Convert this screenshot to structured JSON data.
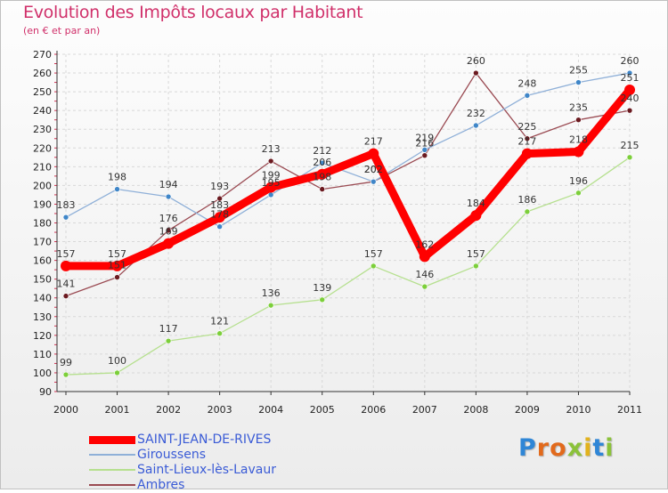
{
  "chart_data": {
    "type": "line",
    "title": "Evolution des Impôts locaux par Habitant",
    "subtitle": "(en € et par an)",
    "x": [
      "2000",
      "2001",
      "2002",
      "2003",
      "2004",
      "2005",
      "2006",
      "2007",
      "2008",
      "2009",
      "2010",
      "2011"
    ],
    "ylim": [
      90,
      270
    ],
    "yticks": [
      90,
      100,
      110,
      120,
      130,
      140,
      150,
      160,
      170,
      180,
      190,
      200,
      210,
      220,
      230,
      240,
      250,
      260,
      270
    ],
    "grid": true,
    "series": [
      {
        "name": "SAINT-JEAN-DE-RIVES",
        "color": "#ff0000",
        "marker": "#ff0000",
        "values": [
          157,
          157,
          169,
          183,
          199,
          206,
          217,
          162,
          184,
          217,
          218,
          251
        ],
        "labels": [
          "157",
          "157",
          "169",
          "183",
          "199",
          "206",
          "217",
          "162",
          "184",
          "217",
          "218",
          "251"
        ]
      },
      {
        "name": "Giroussens",
        "color": "#8fb0d8",
        "marker": "#3f86c8",
        "values": [
          183,
          198,
          194,
          178,
          195,
          212,
          202,
          219,
          232,
          248,
          255,
          260
        ],
        "labels": [
          "183",
          "198",
          "194",
          "178",
          "195",
          "212",
          "202",
          "219",
          "232",
          "248",
          "255",
          "260"
        ]
      },
      {
        "name": "Saint-Lieux-lès-Lavaur",
        "color": "#b6e08f",
        "marker": "#7ccf3a",
        "values": [
          99,
          100,
          117,
          121,
          136,
          139,
          157,
          146,
          157,
          186,
          196,
          215
        ],
        "labels": [
          "99",
          "100",
          "117",
          "121",
          "136",
          "139",
          "157",
          "146",
          "157",
          "186",
          "196",
          "215"
        ]
      },
      {
        "name": "Ambres",
        "color": "#9a4a52",
        "marker": "#6b1a20",
        "values": [
          141,
          151,
          176,
          193,
          213,
          198,
          202,
          216,
          260,
          225,
          235,
          240
        ],
        "labels": [
          "141",
          "151",
          "176",
          "193",
          "213",
          "198",
          "202",
          "216",
          "260",
          "225",
          "235",
          "240"
        ]
      }
    ]
  },
  "logo": {
    "letters": [
      "P",
      "r",
      "o",
      "x",
      "i",
      "t",
      "i"
    ],
    "colors": [
      "#2f86d6",
      "#e26a1c",
      "#e26a1c",
      "#8bc23a",
      "#e2b21c",
      "#2f86d6",
      "#8bc23a"
    ]
  }
}
